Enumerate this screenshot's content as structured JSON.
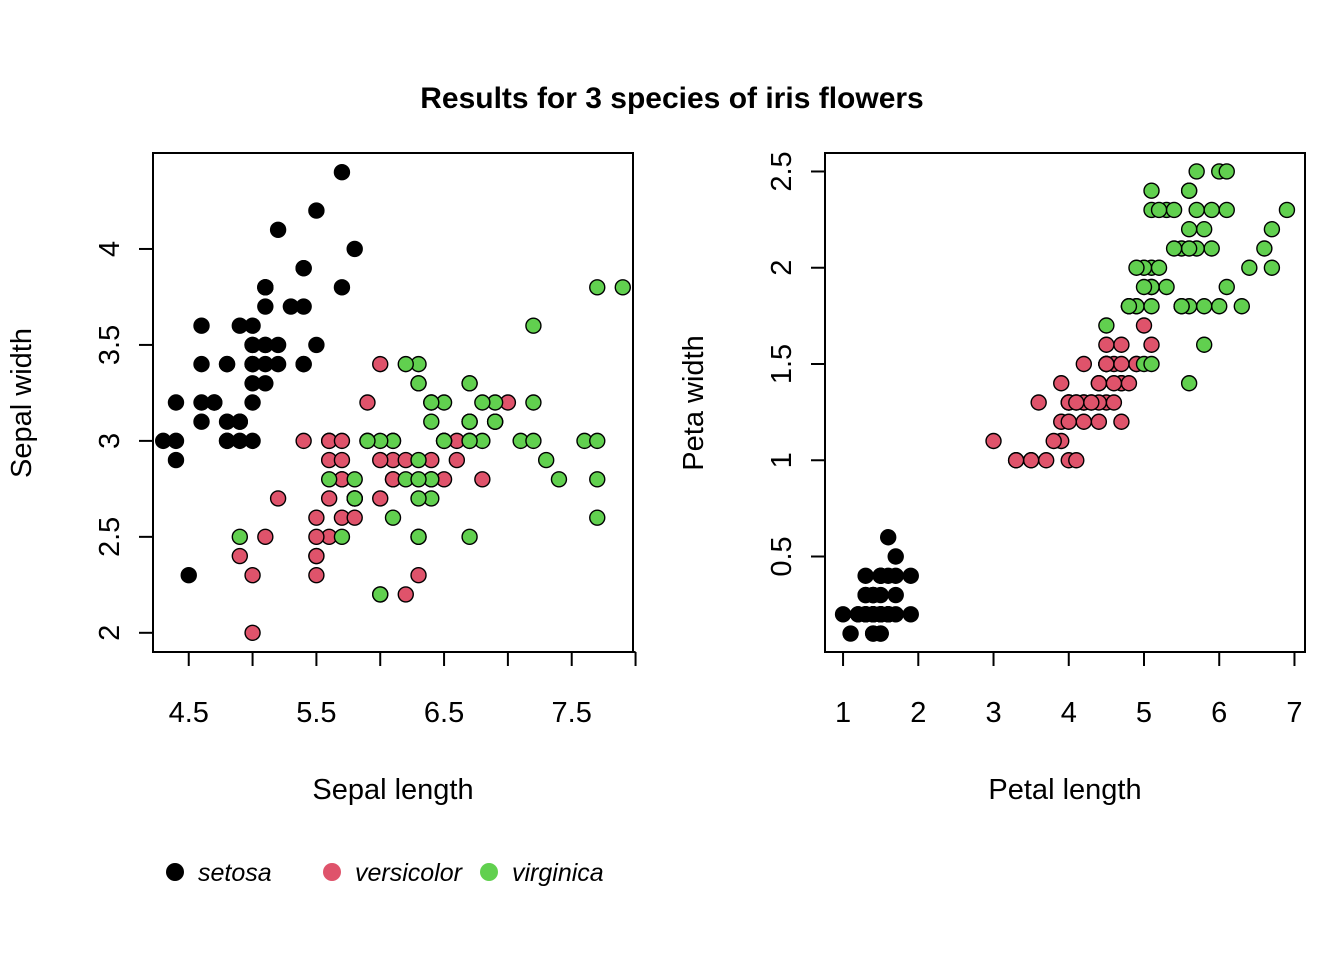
{
  "title": "Results for 3 species of iris flowers",
  "colors": {
    "setosa": "#000000",
    "versicolor": "#DF536B",
    "virginica": "#61D04F"
  },
  "legend": {
    "items": [
      {
        "label": "setosa",
        "color": "#000000"
      },
      {
        "label": "versicolor",
        "color": "#DF536B"
      },
      {
        "label": "virginica",
        "color": "#61D04F"
      }
    ]
  },
  "chart_data": [
    {
      "type": "scatter",
      "xlabel": "Sepal length",
      "ylabel": "Sepal width",
      "xlim": [
        4.22,
        7.98
      ],
      "ylim": [
        1.9,
        4.5
      ],
      "xticks": [
        4.5,
        5.5,
        6.5,
        7.5
      ],
      "xticks_minor": [
        5.0,
        6.0,
        7.0,
        8.0
      ],
      "yticks": [
        2.0,
        2.5,
        3.0,
        3.5,
        4.0
      ],
      "series": [
        {
          "name": "setosa",
          "color": "#000000",
          "x": [
            5.1,
            4.9,
            4.7,
            4.6,
            5.0,
            5.4,
            4.6,
            5.0,
            4.4,
            4.9,
            5.4,
            4.8,
            4.8,
            4.3,
            5.8,
            5.7,
            5.4,
            5.1,
            5.7,
            5.1,
            5.4,
            5.1,
            4.6,
            5.1,
            4.8,
            5.0,
            5.0,
            5.2,
            5.2,
            4.7,
            4.8,
            5.4,
            5.2,
            5.5,
            4.9,
            5.0,
            5.5,
            4.9,
            4.4,
            5.1,
            5.0,
            4.5,
            4.4,
            5.0,
            5.1,
            4.8,
            5.1,
            4.6,
            5.3,
            5.0
          ],
          "y": [
            3.5,
            3.0,
            3.2,
            3.1,
            3.6,
            3.9,
            3.4,
            3.4,
            2.9,
            3.1,
            3.7,
            3.4,
            3.0,
            3.0,
            4.0,
            4.4,
            3.9,
            3.5,
            3.8,
            3.8,
            3.4,
            3.7,
            3.6,
            3.3,
            3.4,
            3.0,
            3.4,
            3.5,
            3.4,
            3.2,
            3.1,
            3.4,
            4.1,
            4.2,
            3.1,
            3.2,
            3.5,
            3.6,
            3.0,
            3.4,
            3.5,
            2.3,
            3.2,
            3.5,
            3.8,
            3.0,
            3.8,
            3.2,
            3.7,
            3.3
          ]
        },
        {
          "name": "versicolor",
          "color": "#DF536B",
          "x": [
            7.0,
            6.4,
            6.9,
            5.5,
            6.5,
            5.7,
            6.3,
            4.9,
            6.6,
            5.2,
            5.0,
            5.9,
            6.0,
            6.1,
            5.6,
            6.7,
            5.6,
            5.8,
            6.2,
            5.6,
            5.9,
            6.1,
            6.3,
            6.1,
            6.4,
            6.6,
            6.8,
            6.7,
            6.0,
            5.7,
            5.5,
            5.5,
            5.8,
            6.0,
            5.4,
            6.0,
            6.7,
            6.3,
            5.6,
            5.5,
            5.5,
            6.1,
            5.8,
            5.0,
            5.6,
            5.7,
            5.7,
            6.2,
            5.1,
            5.7
          ],
          "y": [
            3.2,
            3.2,
            3.1,
            2.3,
            2.8,
            2.8,
            3.3,
            2.4,
            2.9,
            2.7,
            2.0,
            3.0,
            2.2,
            2.9,
            2.9,
            3.1,
            3.0,
            2.7,
            2.2,
            2.5,
            3.2,
            2.8,
            2.5,
            2.8,
            2.9,
            3.0,
            2.8,
            3.0,
            2.9,
            2.6,
            2.4,
            2.4,
            2.7,
            2.7,
            3.0,
            3.4,
            3.1,
            2.3,
            3.0,
            2.5,
            2.6,
            3.0,
            2.6,
            2.3,
            2.7,
            3.0,
            2.9,
            2.9,
            2.5,
            2.8
          ]
        },
        {
          "name": "virginica",
          "color": "#61D04F",
          "x": [
            6.3,
            5.8,
            7.1,
            6.3,
            6.5,
            7.6,
            4.9,
            7.3,
            6.7,
            7.2,
            6.5,
            6.4,
            6.8,
            5.7,
            5.8,
            6.4,
            6.5,
            7.7,
            7.7,
            6.0,
            6.9,
            5.6,
            7.7,
            6.3,
            6.7,
            7.2,
            6.2,
            6.1,
            6.4,
            7.2,
            7.4,
            7.9,
            6.4,
            6.3,
            6.1,
            7.7,
            6.3,
            6.4,
            6.0,
            6.9,
            6.7,
            6.9,
            5.8,
            6.8,
            6.7,
            6.7,
            6.3,
            6.5,
            6.2,
            5.9
          ],
          "y": [
            3.3,
            2.7,
            3.0,
            2.9,
            3.0,
            3.0,
            2.5,
            2.9,
            2.5,
            3.6,
            3.2,
            2.7,
            3.0,
            2.5,
            2.8,
            3.2,
            3.0,
            3.8,
            2.6,
            2.2,
            3.2,
            2.8,
            2.8,
            2.7,
            3.3,
            3.2,
            2.8,
            3.0,
            2.8,
            3.0,
            2.8,
            3.8,
            2.8,
            2.8,
            2.6,
            3.0,
            3.4,
            3.1,
            3.0,
            3.1,
            3.1,
            3.1,
            2.7,
            3.2,
            3.3,
            3.0,
            2.5,
            3.0,
            3.4,
            3.0
          ]
        }
      ]
    },
    {
      "type": "scatter",
      "xlabel": "Petal length",
      "ylabel": "Peta width",
      "xlim": [
        0.76,
        7.14
      ],
      "ylim": [
        0.004,
        2.596
      ],
      "xticks": [
        1,
        2,
        3,
        4,
        5,
        6,
        7
      ],
      "yticks": [
        0.5,
        1.0,
        1.5,
        2.0,
        2.5
      ],
      "series": [
        {
          "name": "setosa",
          "color": "#000000",
          "x": [
            1.4,
            1.4,
            1.3,
            1.5,
            1.4,
            1.7,
            1.4,
            1.5,
            1.4,
            1.5,
            1.5,
            1.6,
            1.4,
            1.1,
            1.2,
            1.5,
            1.3,
            1.4,
            1.7,
            1.5,
            1.7,
            1.5,
            1.0,
            1.7,
            1.9,
            1.6,
            1.6,
            1.5,
            1.4,
            1.6,
            1.6,
            1.5,
            1.5,
            1.4,
            1.5,
            1.2,
            1.3,
            1.4,
            1.3,
            1.5,
            1.3,
            1.3,
            1.3,
            1.6,
            1.9,
            1.4,
            1.6,
            1.4,
            1.5,
            1.4
          ],
          "y": [
            0.2,
            0.2,
            0.2,
            0.2,
            0.2,
            0.4,
            0.3,
            0.2,
            0.2,
            0.1,
            0.2,
            0.2,
            0.1,
            0.1,
            0.2,
            0.4,
            0.4,
            0.3,
            0.3,
            0.3,
            0.2,
            0.4,
            0.2,
            0.5,
            0.2,
            0.2,
            0.4,
            0.2,
            0.2,
            0.2,
            0.2,
            0.4,
            0.1,
            0.2,
            0.2,
            0.2,
            0.2,
            0.1,
            0.2,
            0.2,
            0.3,
            0.3,
            0.2,
            0.6,
            0.4,
            0.3,
            0.2,
            0.2,
            0.2,
            0.2
          ]
        },
        {
          "name": "versicolor",
          "color": "#DF536B",
          "x": [
            4.7,
            4.5,
            4.9,
            4.0,
            4.6,
            4.5,
            4.7,
            3.3,
            4.6,
            3.9,
            3.5,
            4.2,
            4.0,
            4.7,
            3.6,
            4.4,
            4.5,
            4.1,
            4.5,
            3.9,
            4.8,
            4.0,
            4.9,
            4.7,
            4.3,
            4.4,
            4.8,
            5.0,
            4.5,
            3.5,
            3.8,
            3.7,
            3.9,
            5.1,
            4.5,
            4.5,
            4.7,
            4.4,
            4.1,
            4.0,
            4.4,
            4.6,
            4.0,
            3.3,
            4.2,
            4.2,
            4.2,
            4.3,
            3.0,
            4.1
          ],
          "y": [
            1.4,
            1.5,
            1.5,
            1.3,
            1.5,
            1.3,
            1.6,
            1.0,
            1.3,
            1.4,
            1.0,
            1.5,
            1.0,
            1.4,
            1.3,
            1.4,
            1.5,
            1.0,
            1.5,
            1.1,
            1.8,
            1.3,
            1.5,
            1.2,
            1.3,
            1.4,
            1.4,
            1.7,
            1.5,
            1.0,
            1.1,
            1.0,
            1.2,
            1.6,
            1.5,
            1.6,
            1.5,
            1.3,
            1.3,
            1.3,
            1.2,
            1.4,
            1.2,
            1.0,
            1.3,
            1.2,
            1.3,
            1.3,
            1.1,
            1.3
          ]
        },
        {
          "name": "virginica",
          "color": "#61D04F",
          "x": [
            6.0,
            5.1,
            5.9,
            5.6,
            5.8,
            6.6,
            4.5,
            6.3,
            5.8,
            6.1,
            5.1,
            5.3,
            5.5,
            5.0,
            5.1,
            5.3,
            5.5,
            6.7,
            6.9,
            5.0,
            5.7,
            4.9,
            6.7,
            4.9,
            5.7,
            6.0,
            4.8,
            4.9,
            5.6,
            5.8,
            6.1,
            6.4,
            5.6,
            5.1,
            5.6,
            6.1,
            5.6,
            5.5,
            4.8,
            5.4,
            5.6,
            5.1,
            5.1,
            5.9,
            5.7,
            5.2,
            5.0,
            5.2,
            5.4,
            5.1
          ],
          "y": [
            2.5,
            1.9,
            2.1,
            1.8,
            2.2,
            2.1,
            1.7,
            1.8,
            1.8,
            2.5,
            2.0,
            1.9,
            2.1,
            2.0,
            2.4,
            2.3,
            1.8,
            2.2,
            2.3,
            1.5,
            2.3,
            2.0,
            2.0,
            1.8,
            2.1,
            1.8,
            1.8,
            1.8,
            2.1,
            1.6,
            1.9,
            2.0,
            2.2,
            1.5,
            1.4,
            2.3,
            2.4,
            1.8,
            1.8,
            2.1,
            2.4,
            2.3,
            1.9,
            2.3,
            2.5,
            2.3,
            1.9,
            2.0,
            2.3,
            1.8
          ]
        }
      ]
    }
  ]
}
